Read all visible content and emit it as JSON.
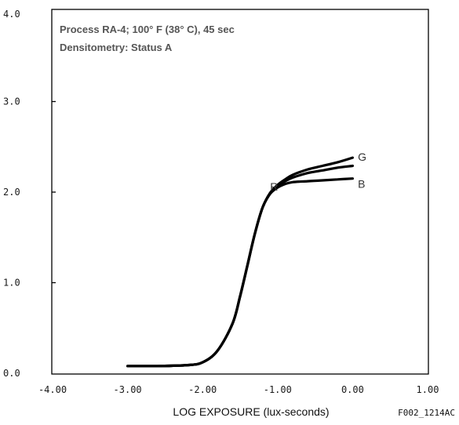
{
  "chart_data": {
    "type": "line",
    "header": {
      "process_label": "Process RA-4;",
      "process_detail": " 100° F (38° C), 45 sec",
      "densitometry_label": "Densitometry:",
      "densitometry_detail": " Status A"
    },
    "xlabel": "LOG EXPOSURE (lux-seconds)",
    "ylabel": "",
    "figure_id": "F002_1214AC",
    "xlim": [
      -4.0,
      1.0
    ],
    "ylim": [
      0.0,
      4.0
    ],
    "x_ticks": [
      {
        "value": -4.0,
        "label": "-4.00"
      },
      {
        "value": -3.0,
        "label": "-3.00"
      },
      {
        "value": -2.0,
        "label": "-2.00"
      },
      {
        "value": -1.0,
        "label": "-1.00"
      },
      {
        "value": 0.0,
        "label": "0.00"
      },
      {
        "value": 1.0,
        "label": "1.00"
      }
    ],
    "y_ticks": [
      {
        "value": 0.0,
        "label": "0.0"
      },
      {
        "value": 1.0,
        "label": "1.0"
      },
      {
        "value": 2.0,
        "label": "2.0"
      },
      {
        "value": 3.0,
        "label": "3.0"
      },
      {
        "value": 4.0,
        "label": "4.0"
      }
    ],
    "grid": false,
    "series": [
      {
        "name": "R",
        "color": "#000000",
        "x": [
          -3.0,
          -2.6,
          -2.2,
          -2.0,
          -1.8,
          -1.6,
          -1.5,
          -1.4,
          -1.3,
          -1.2,
          -1.1,
          -1.0,
          -0.9,
          -0.8,
          -0.6,
          -0.4,
          -0.2,
          0.0
        ],
        "y": [
          0.08,
          0.08,
          0.09,
          0.12,
          0.25,
          0.55,
          0.85,
          1.2,
          1.55,
          1.83,
          1.98,
          2.05,
          2.09,
          2.11,
          2.12,
          2.13,
          2.14,
          2.15
        ]
      },
      {
        "name": "G",
        "color": "#000000",
        "x": [
          -3.0,
          -2.6,
          -2.2,
          -2.0,
          -1.8,
          -1.6,
          -1.5,
          -1.4,
          -1.3,
          -1.2,
          -1.1,
          -1.0,
          -0.9,
          -0.8,
          -0.6,
          -0.4,
          -0.2,
          0.0
        ],
        "y": [
          0.08,
          0.08,
          0.09,
          0.12,
          0.25,
          0.55,
          0.85,
          1.2,
          1.55,
          1.83,
          1.99,
          2.08,
          2.14,
          2.19,
          2.25,
          2.29,
          2.33,
          2.38
        ]
      },
      {
        "name": "B",
        "color": "#000000",
        "x": [
          -3.0,
          -2.6,
          -2.2,
          -2.0,
          -1.8,
          -1.6,
          -1.5,
          -1.4,
          -1.3,
          -1.2,
          -1.1,
          -1.0,
          -0.9,
          -0.8,
          -0.6,
          -0.4,
          -0.2,
          0.0
        ],
        "y": [
          0.08,
          0.08,
          0.09,
          0.12,
          0.25,
          0.55,
          0.85,
          1.2,
          1.55,
          1.83,
          1.99,
          2.07,
          2.12,
          2.16,
          2.21,
          2.24,
          2.27,
          2.29
        ]
      }
    ],
    "annotations": [
      {
        "text": "R",
        "x": -1.1,
        "y": 2.06
      },
      {
        "text": "G",
        "x": 0.07,
        "y": 2.39
      },
      {
        "text": "B",
        "x": 0.07,
        "y": 2.09
      }
    ]
  }
}
